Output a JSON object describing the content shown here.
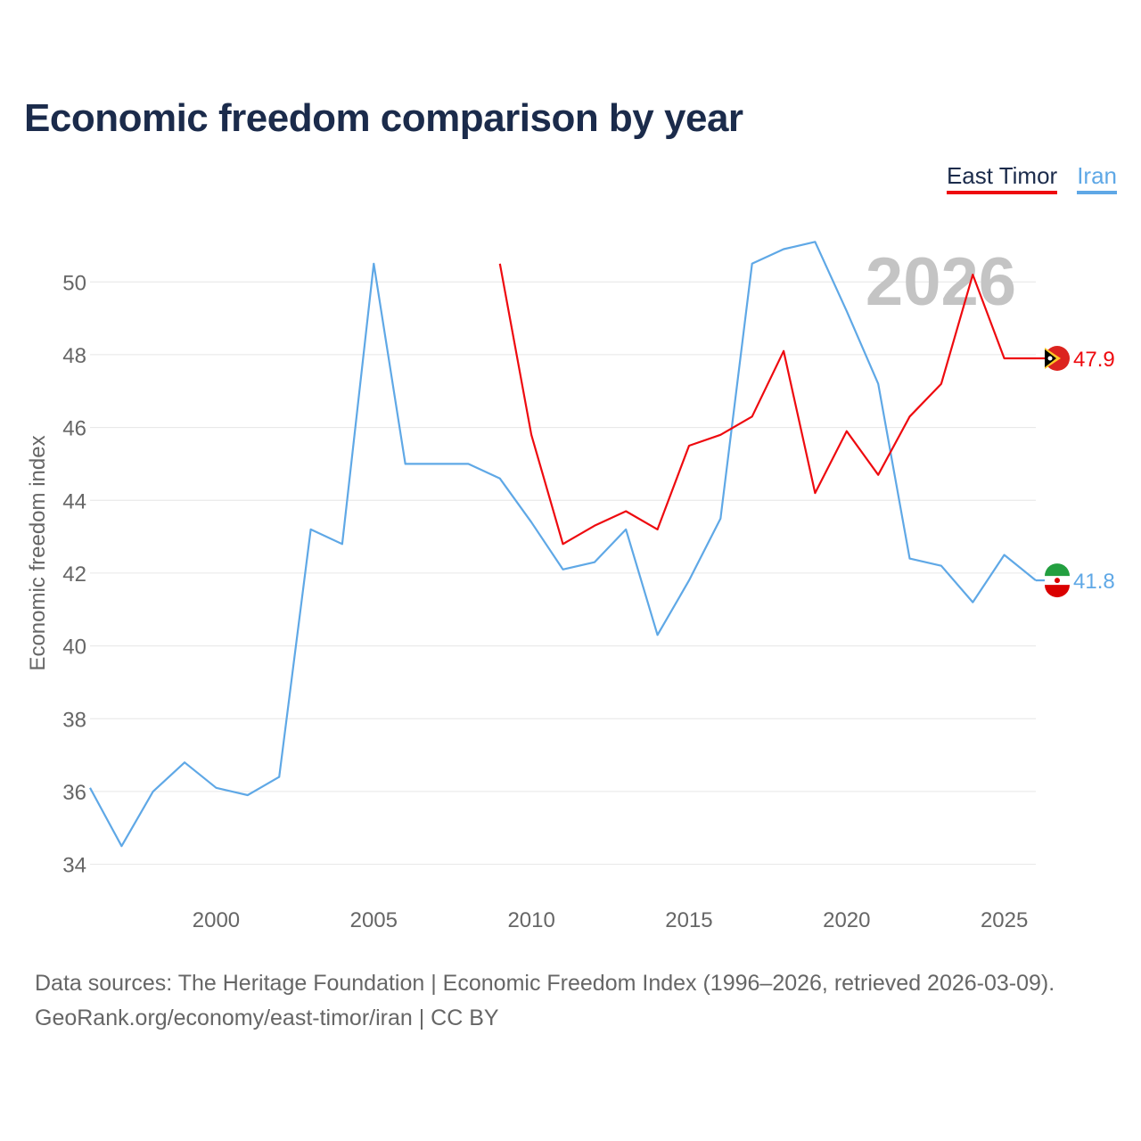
{
  "title": "Economic freedom comparison by year",
  "legend": [
    {
      "name": "East Timor",
      "color": "#ee0a0f"
    },
    {
      "name": "Iran",
      "color": "#5fa8e6"
    }
  ],
  "colors": {
    "title": "#1b2b4b",
    "grid": "#e6e6e6",
    "axis_text": "#666666",
    "year_label": "#c4c4c4"
  },
  "chart_data": {
    "type": "line",
    "title": "Economic freedom comparison by year",
    "xlabel": "",
    "ylabel": "Economic freedom index",
    "xlim": [
      1996,
      2026
    ],
    "ylim": [
      33.5,
      51.5
    ],
    "xticks": [
      2000,
      2005,
      2010,
      2015,
      2020,
      2025
    ],
    "yticks": [
      34,
      36,
      38,
      40,
      42,
      44,
      46,
      48,
      50
    ],
    "grid": true,
    "year_label": "2026",
    "series": [
      {
        "name": "East Timor",
        "color": "#ee0a0f",
        "flag": "east-timor",
        "end_label": "47.9",
        "x": [
          2009,
          2010,
          2011,
          2012,
          2013,
          2014,
          2015,
          2016,
          2017,
          2018,
          2019,
          2020,
          2021,
          2022,
          2023,
          2024,
          2025,
          2026
        ],
        "values": [
          50.5,
          45.8,
          42.8,
          43.3,
          43.7,
          43.2,
          45.5,
          45.8,
          46.3,
          48.1,
          44.2,
          45.9,
          44.7,
          46.3,
          47.2,
          50.2,
          47.9,
          47.9
        ]
      },
      {
        "name": "Iran",
        "color": "#5fa8e6",
        "flag": "iran",
        "end_label": "41.8",
        "x": [
          1996,
          1997,
          1998,
          1999,
          2000,
          2001,
          2002,
          2003,
          2004,
          2005,
          2006,
          2007,
          2008,
          2009,
          2010,
          2011,
          2012,
          2013,
          2014,
          2015,
          2016,
          2017,
          2018,
          2019,
          2020,
          2021,
          2022,
          2023,
          2024,
          2025,
          2026
        ],
        "values": [
          36.1,
          34.5,
          36.0,
          36.8,
          36.1,
          35.9,
          36.4,
          43.2,
          42.8,
          50.5,
          45.0,
          45.0,
          45.0,
          44.6,
          43.4,
          42.1,
          42.3,
          43.2,
          40.3,
          41.8,
          43.5,
          50.5,
          50.9,
          51.1,
          49.2,
          47.2,
          42.4,
          42.2,
          41.2,
          42.5,
          41.8
        ]
      }
    ]
  },
  "footer": {
    "line1": "Data sources: The Heritage Foundation | Economic Freedom Index (1996–2026, retrieved 2026-03-09).",
    "line2": "GeoRank.org/economy/east-timor/iran | CC BY"
  }
}
